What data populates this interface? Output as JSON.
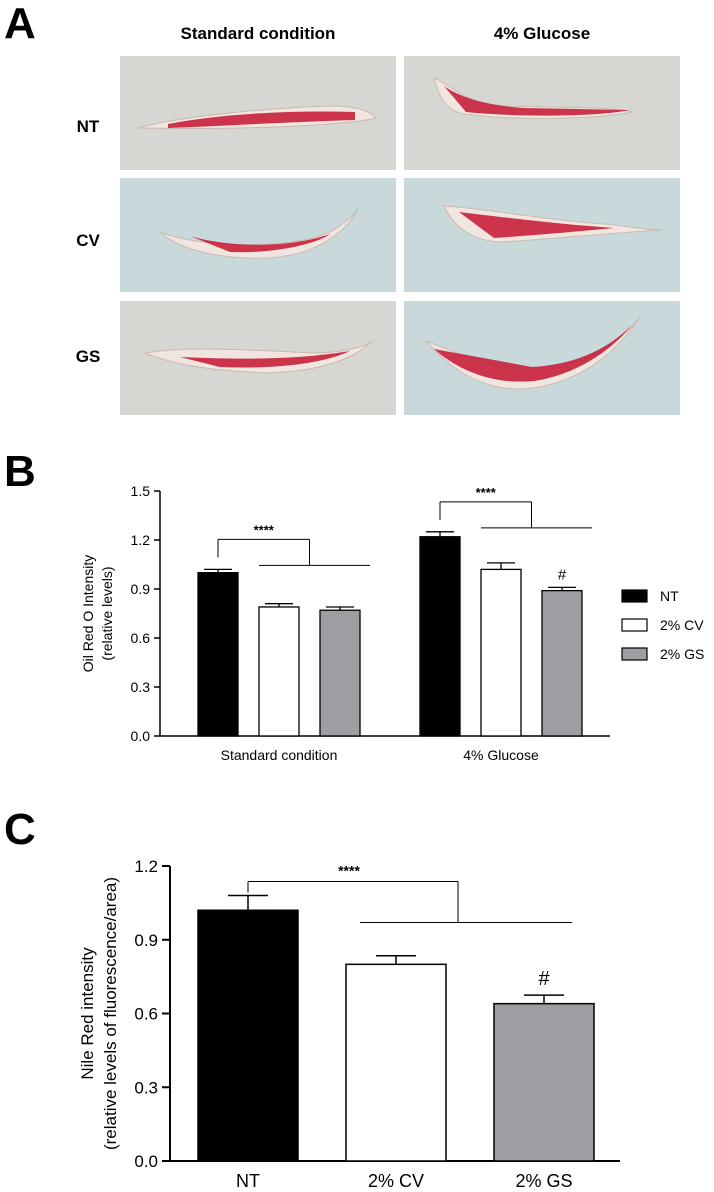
{
  "panels": {
    "a_letter": "A",
    "b_letter": "B",
    "c_letter": "C"
  },
  "panel_a": {
    "columns": [
      "Standard condition",
      "4% Glucose"
    ],
    "rows": [
      "NT",
      "CV",
      "GS"
    ],
    "colors": {
      "bg_standard": "#d6d7d3",
      "bg_blue": "#c9d9db",
      "worm_body": "#f1e6df",
      "stain": "#c8203c"
    }
  },
  "chart_data": [
    {
      "type": "bar",
      "panel": "B",
      "categories": [
        "Standard condition",
        "4% Glucose"
      ],
      "series": [
        {
          "name": "NT",
          "color": "#000000",
          "values": [
            1.0,
            1.22
          ],
          "errors": [
            0.02,
            0.03
          ]
        },
        {
          "name": "2% CV",
          "color": "#ffffff",
          "values": [
            0.79,
            1.02
          ],
          "errors": [
            0.02,
            0.04
          ]
        },
        {
          "name": "2% GS",
          "color": "#9e9ea2",
          "values": [
            0.77,
            0.89
          ],
          "errors": [
            0.02,
            0.02
          ]
        }
      ],
      "ylabel": "Oil Red O Intensity",
      "ylabel2": "(relative levels)",
      "ylim": [
        0,
        1.5
      ],
      "yticks": [
        "0.0",
        "0.3",
        "0.6",
        "0.9",
        "1.2",
        "1.5"
      ],
      "legend_position": "right",
      "annotations": {
        "significance": "****",
        "hash": "#"
      }
    },
    {
      "type": "bar",
      "panel": "C",
      "categories": [
        "NT",
        "2% CV",
        "2% GS"
      ],
      "values": [
        1.02,
        0.8,
        0.64
      ],
      "errors": [
        0.06,
        0.035,
        0.035
      ],
      "colors": [
        "#000000",
        "#ffffff",
        "#9e9ea2"
      ],
      "ylabel": "Nile Red intensity",
      "ylabel2": "(relative levels of fluorescence/area)",
      "ylim": [
        0,
        1.2
      ],
      "yticks": [
        "0.0",
        "0.3",
        "0.6",
        "0.9",
        "1.2"
      ],
      "annotations": {
        "significance": "****",
        "hash": "#"
      }
    }
  ]
}
